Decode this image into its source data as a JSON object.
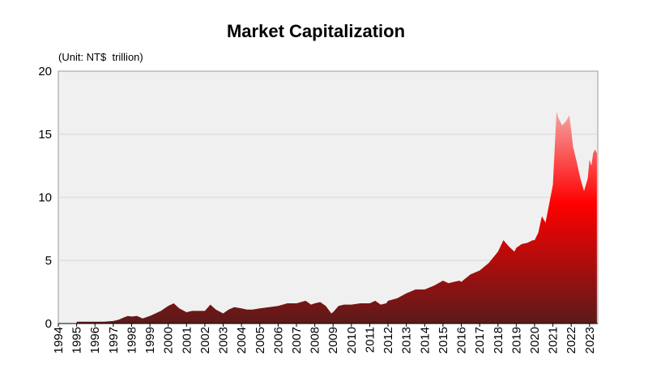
{
  "chart_data": {
    "type": "area",
    "title": "Market Capitalization",
    "unit_label": "(Unit: NT$  trillion)",
    "xlabel": "",
    "ylabel": "",
    "ylim": [
      0,
      20
    ],
    "xlim": [
      1994,
      2023.45
    ],
    "y_ticks": [
      "0",
      "5",
      "10",
      "15",
      "20"
    ],
    "x_ticks": [
      "1994",
      "1995",
      "1996",
      "1997",
      "1998",
      "1999",
      "2000",
      "2001",
      "2002",
      "2003",
      "2004",
      "2005",
      "2006",
      "2007",
      "2008",
      "2009",
      "2010",
      "2011",
      "2012",
      "2013",
      "2014",
      "2015",
      "2016",
      "2017",
      "2018",
      "2019",
      "2020",
      "2021",
      "2022",
      "2023"
    ],
    "grid": true,
    "legend": "none",
    "colors": {
      "plot_background": "#f0f0f0",
      "grid": "#d9d9d9",
      "fill_bottom": "#5a1a1a",
      "fill_peak": "#ff0000",
      "fill_top": "#f4b0b0"
    },
    "series": [
      {
        "x": [
          1995.0,
          1995.5,
          1996.0,
          1996.5,
          1997.0,
          1997.3,
          1997.6,
          1997.8,
          1998.0,
          1998.3,
          1998.6,
          1999.0,
          1999.3,
          1999.6,
          2000.0,
          2000.3,
          2000.6,
          2001.0,
          2001.3,
          2001.6,
          2002.0,
          2002.3,
          2002.6,
          2003.0,
          2003.3,
          2003.6,
          2004.0,
          2004.3,
          2004.6,
          2005.0,
          2005.5,
          2006.0,
          2006.5,
          2007.0,
          2007.5,
          2007.8,
          2008.0,
          2008.3,
          2008.6,
          2008.9,
          2009.0,
          2009.3,
          2009.6,
          2010.0,
          2010.5,
          2011.0,
          2011.3,
          2011.6,
          2011.9,
          2012.0,
          2012.5,
          2013.0,
          2013.5,
          2014.0,
          2014.5,
          2015.0,
          2015.3,
          2015.6,
          2015.9,
          2016.0,
          2016.5,
          2017.0,
          2017.5,
          2018.0,
          2018.3,
          2018.6,
          2018.9,
          2019.0,
          2019.3,
          2019.6,
          2019.9,
          2020.0,
          2020.2,
          2020.4,
          2020.6,
          2020.8,
          2021.0,
          2021.1,
          2021.2,
          2021.3,
          2021.5,
          2021.7,
          2021.9,
          2022.0,
          2022.1,
          2022.3,
          2022.5,
          2022.7,
          2022.9,
          2023.0,
          2023.1,
          2023.2,
          2023.3,
          2023.4
        ],
        "values": [
          0.15,
          0.15,
          0.15,
          0.15,
          0.2,
          0.3,
          0.5,
          0.6,
          0.55,
          0.6,
          0.4,
          0.6,
          0.8,
          1.0,
          1.4,
          1.6,
          1.2,
          0.9,
          1.0,
          1.0,
          1.0,
          1.5,
          1.1,
          0.8,
          1.1,
          1.3,
          1.2,
          1.1,
          1.1,
          1.2,
          1.3,
          1.4,
          1.6,
          1.6,
          1.8,
          1.5,
          1.6,
          1.7,
          1.4,
          0.8,
          0.9,
          1.4,
          1.5,
          1.5,
          1.6,
          1.6,
          1.8,
          1.5,
          1.6,
          1.8,
          2.0,
          2.4,
          2.7,
          2.7,
          3.0,
          3.4,
          3.2,
          3.3,
          3.4,
          3.3,
          3.9,
          4.2,
          4.8,
          5.7,
          6.6,
          6.1,
          5.7,
          6.0,
          6.3,
          6.4,
          6.6,
          6.6,
          7.2,
          8.5,
          8.0,
          9.5,
          11.0,
          14.0,
          16.8,
          16.3,
          15.7,
          16.0,
          16.5,
          15.3,
          14.0,
          12.8,
          11.5,
          10.5,
          11.5,
          13.0,
          12.5,
          13.5,
          13.8,
          13.5
        ]
      }
    ]
  }
}
